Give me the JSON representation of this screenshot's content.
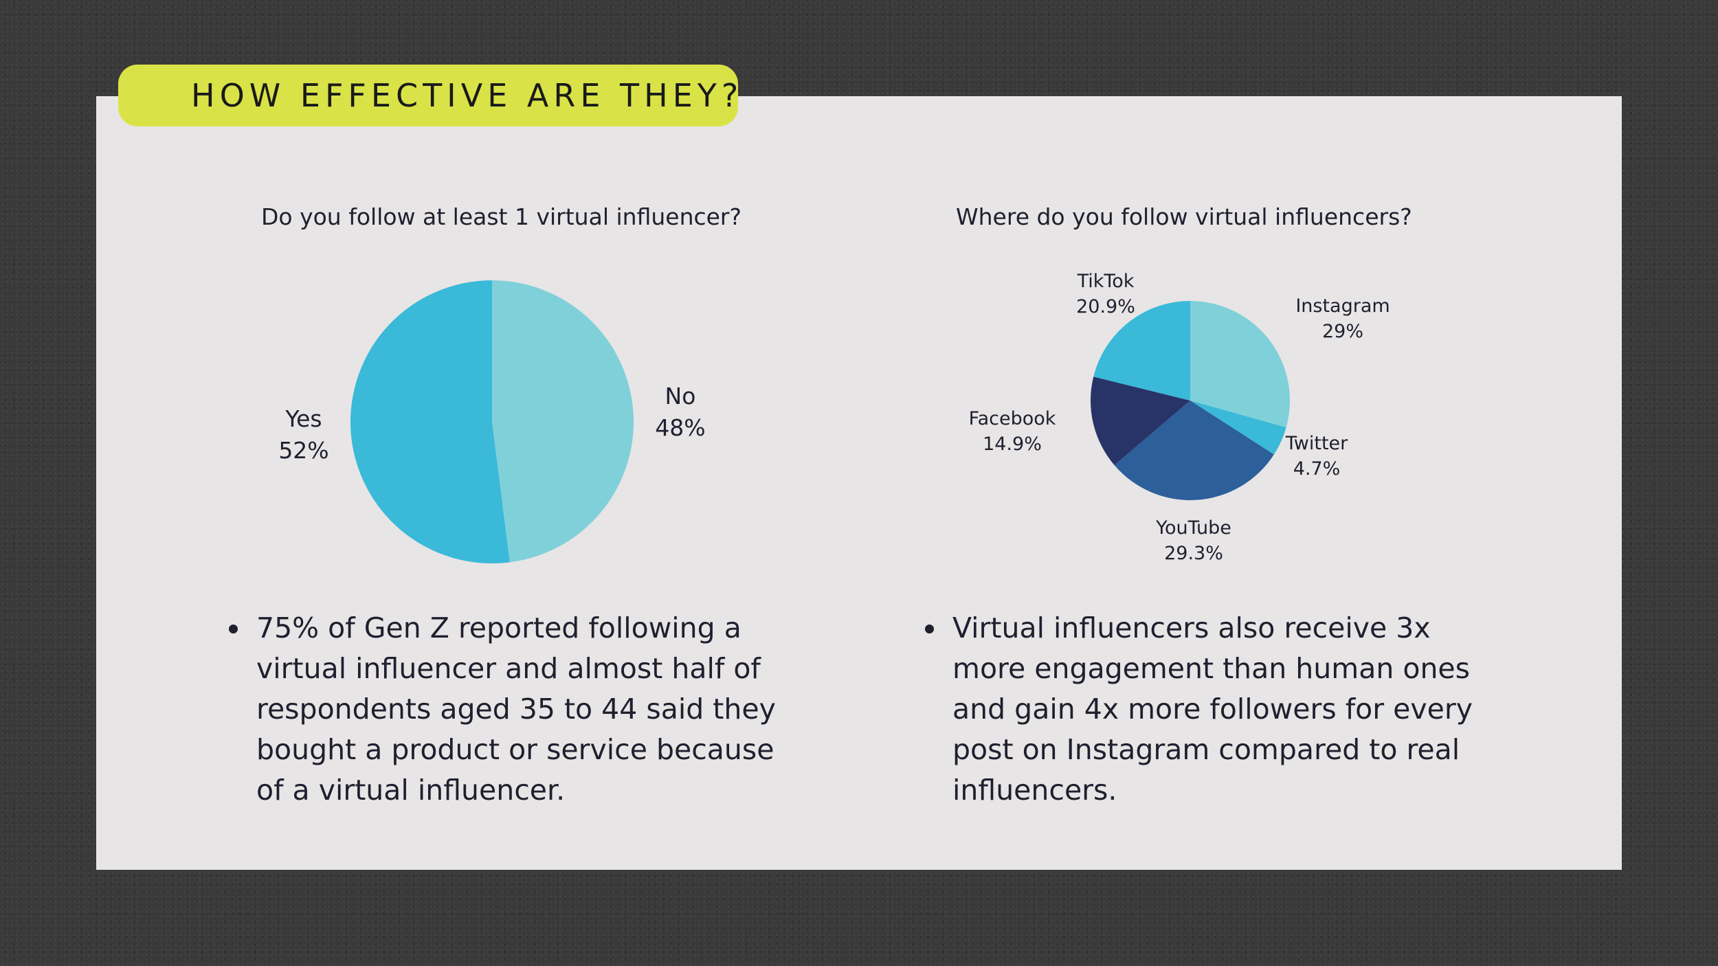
{
  "header": {
    "title": "HOW EFFECTIVE ARE THEY?"
  },
  "colors": {
    "accent": "#d9e348",
    "panel": "#e8e5e6",
    "yes": "#3ab9d8",
    "no": "#80d0da",
    "instagram": "#80d0da",
    "twitter": "#3ab9d8",
    "twitter_edge": "#2e86c0",
    "youtube": "#2d5f9a",
    "facebook": "#283468",
    "tiktok": "#3ab9d8"
  },
  "chart_data": [
    {
      "type": "pie",
      "title": "Do you follow at least 1 virtual influencer?",
      "slices": [
        {
          "label": "No",
          "value_label": "48%",
          "value": 48
        },
        {
          "label": "Yes",
          "value_label": "52%",
          "value": 52
        }
      ]
    },
    {
      "type": "pie",
      "title": "Where do you follow virtual influencers?",
      "slices": [
        {
          "label": "Instagram",
          "value_label": "29%",
          "value": 29
        },
        {
          "label": "Twitter",
          "value_label": "4.7%",
          "value": 4.7
        },
        {
          "label": "YouTube",
          "value_label": "29.3%",
          "value": 29.3
        },
        {
          "label": "Facebook",
          "value_label": "14.9%",
          "value": 14.9
        },
        {
          "label": "TikTok",
          "value_label": "20.9%",
          "value": 20.9
        }
      ]
    }
  ],
  "notes": {
    "left": " 75% of Gen Z reported following a virtual influencer and almost half of respondents aged 35 to 44 said they bought a product or service because of a virtual influencer.",
    "right": " Virtual influencers also receive 3x more engagement than human ones and gain 4x more followers for every post on Instagram compared to real influencers."
  }
}
